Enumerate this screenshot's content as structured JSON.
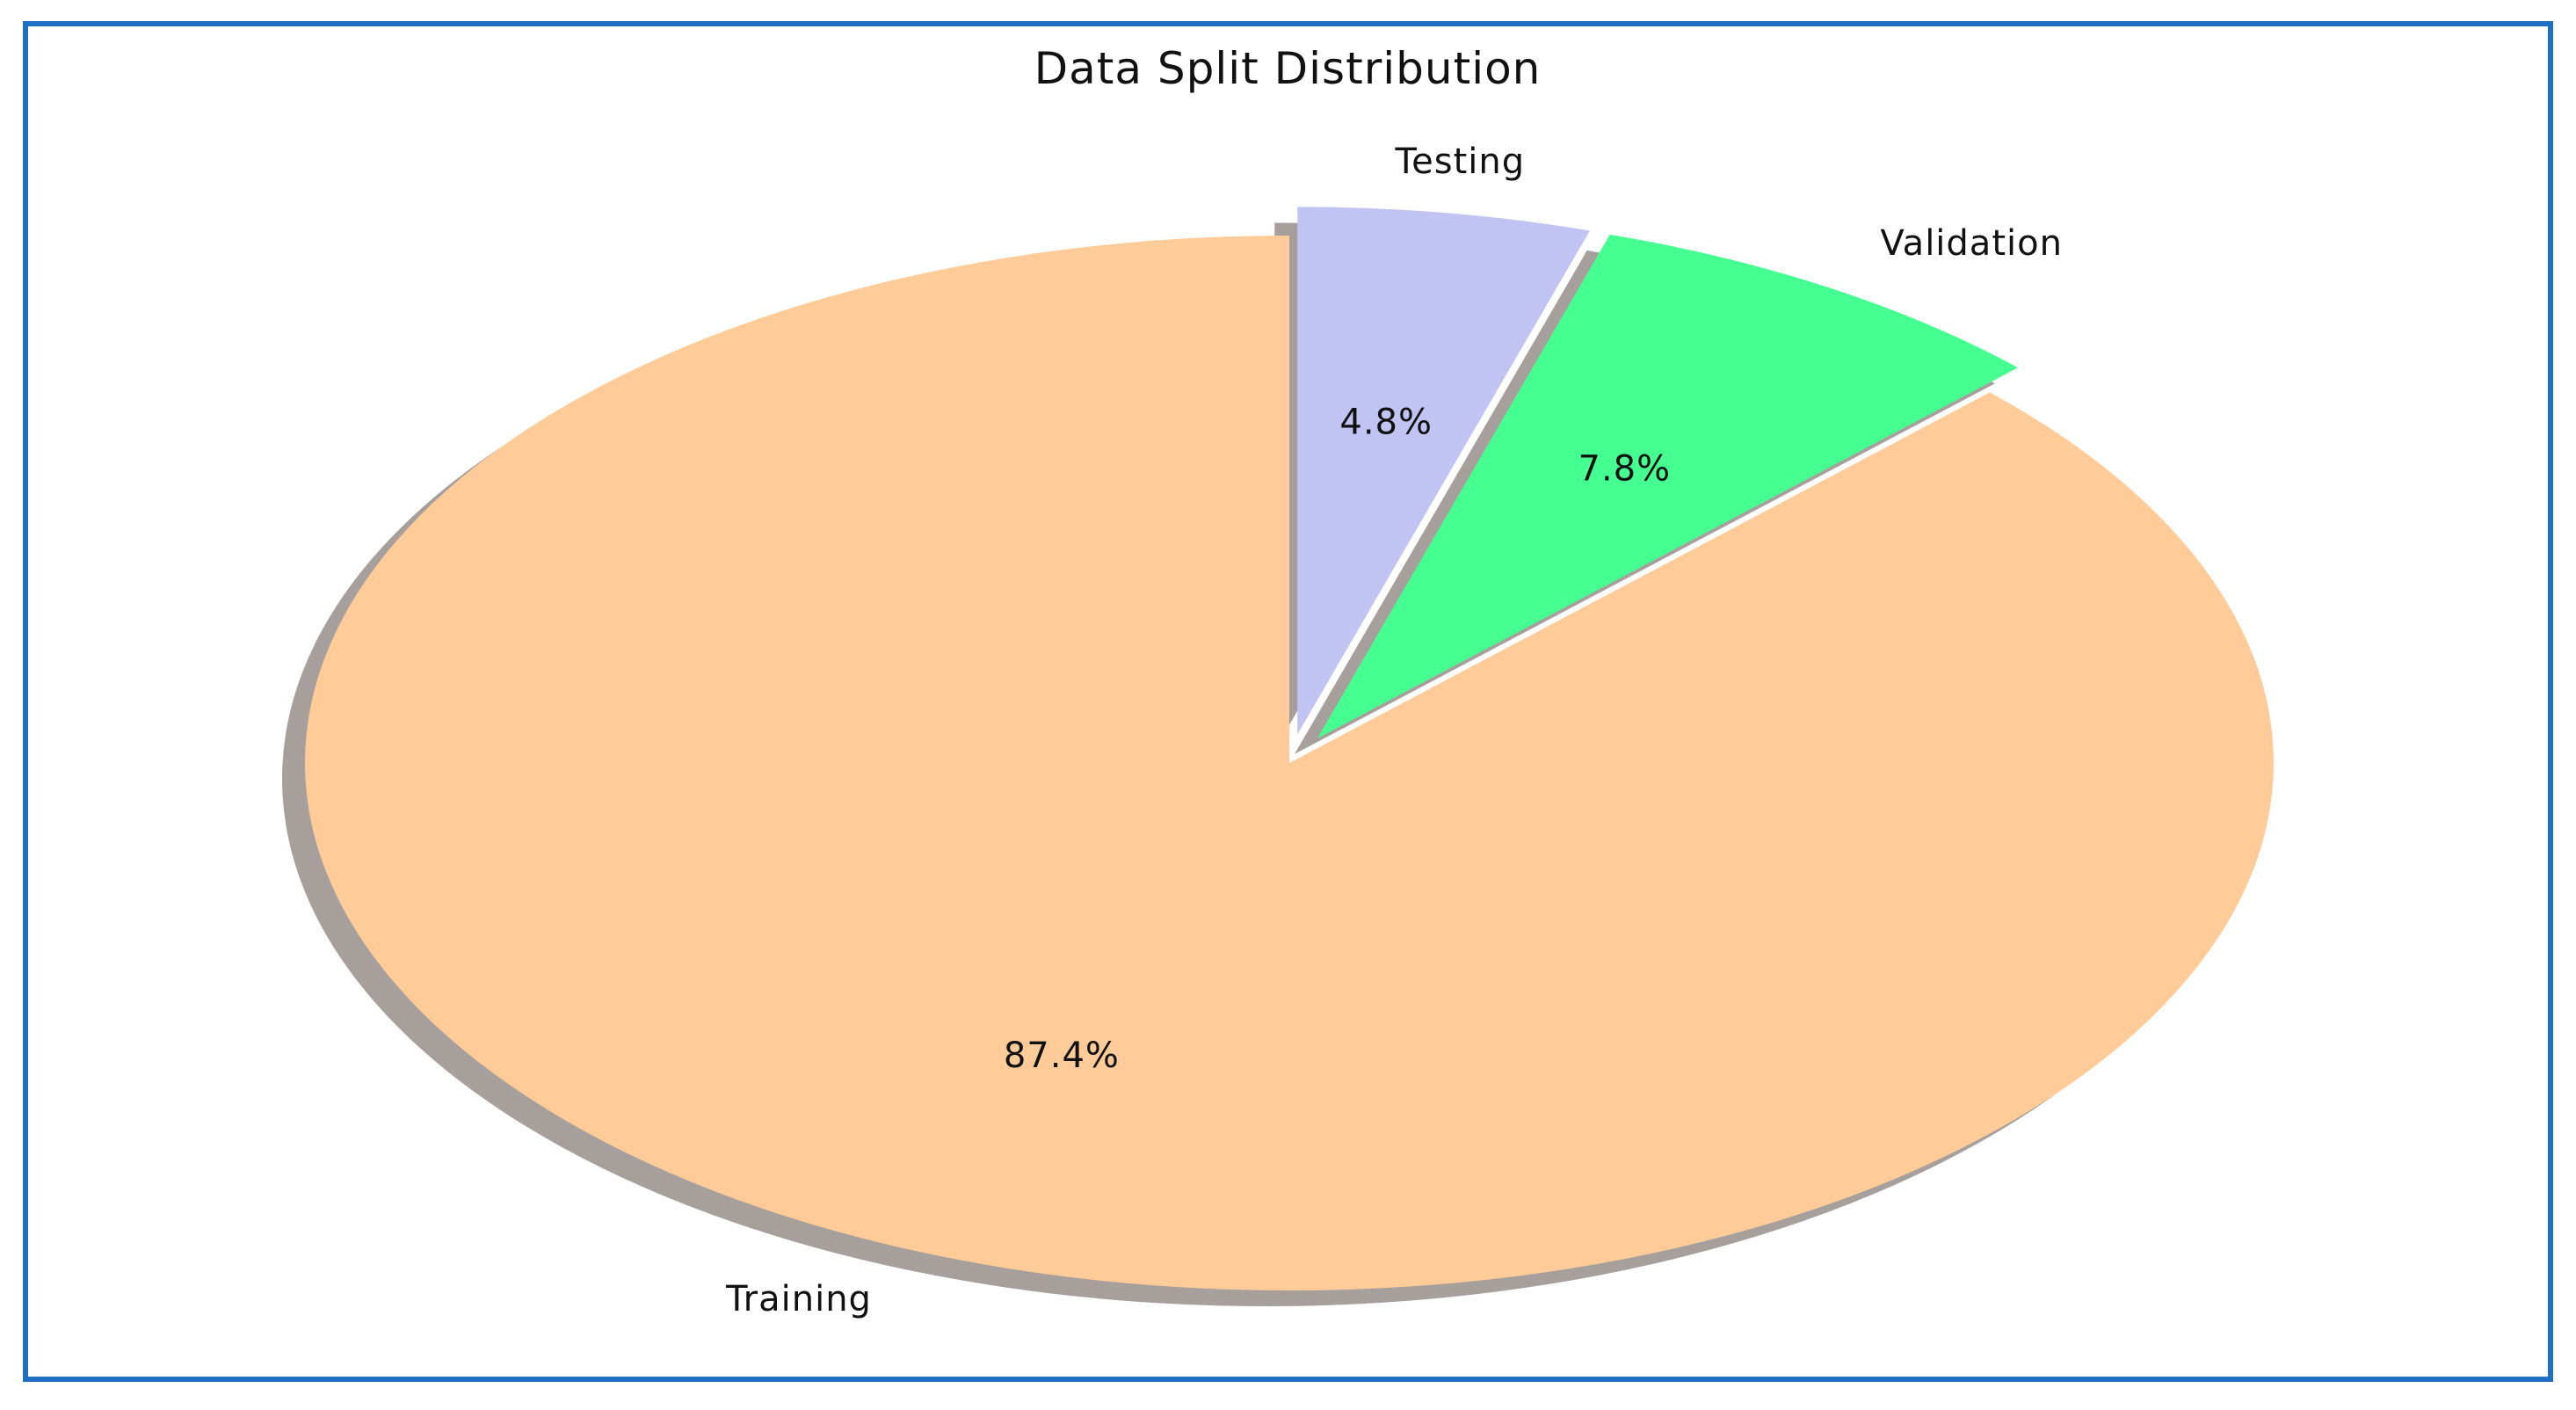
{
  "chart_data": {
    "type": "pie",
    "title": "Data Split Distribution",
    "categories": [
      "Training",
      "Validation",
      "Testing"
    ],
    "values": [
      87.4,
      7.8,
      4.8
    ],
    "value_labels": [
      "87.4%",
      "7.8%",
      "4.8%"
    ],
    "colors": [
      "#ffcc99",
      "#45ff90",
      "#c1c3f3"
    ],
    "exploded": [
      false,
      true,
      true
    ],
    "shadow": true,
    "start_angle": "top",
    "direction": "clockwise",
    "legend": "none"
  }
}
